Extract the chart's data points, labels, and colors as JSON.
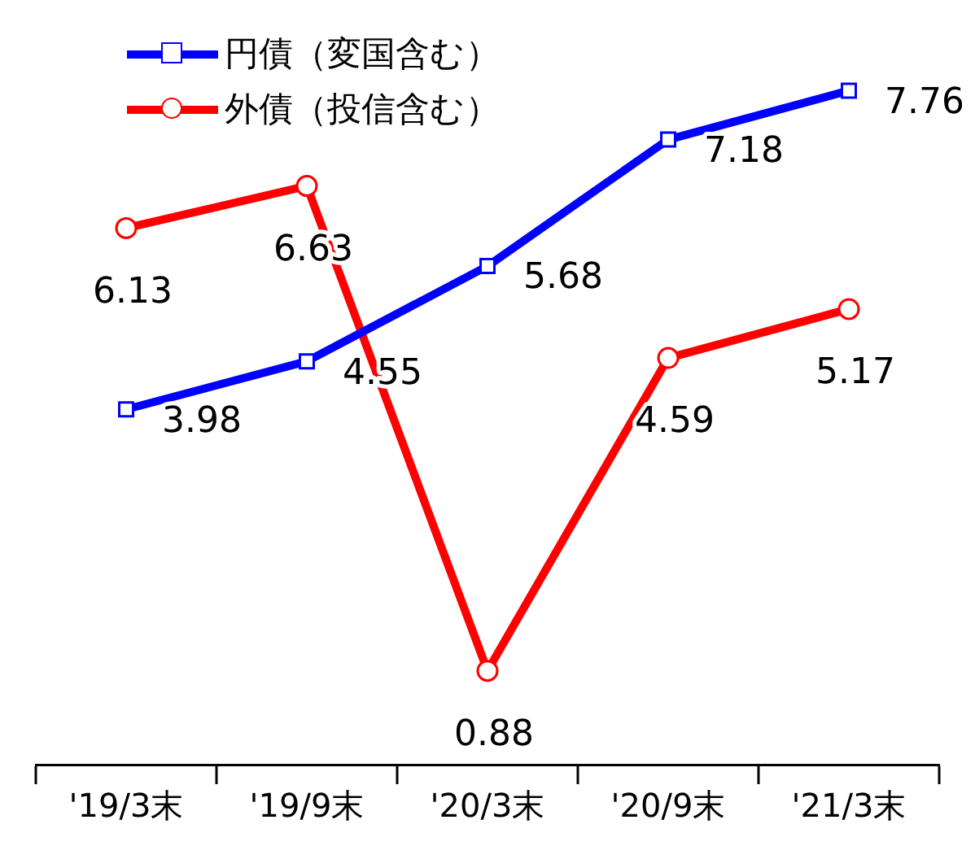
{
  "chart_data": {
    "type": "line",
    "categories": [
      "'19/3末",
      "'19/9末",
      "'20/3末",
      "'20/9末",
      "'21/3末"
    ],
    "series": [
      {
        "name": "円債（変国含む）",
        "color": "#0000ff",
        "marker": "square",
        "values": [
          3.98,
          4.55,
          5.68,
          7.18,
          7.76
        ]
      },
      {
        "name": "外債（投信含む）",
        "color": "#ff0000",
        "marker": "circle",
        "values": [
          6.13,
          6.63,
          0.88,
          4.59,
          5.17
        ]
      }
    ],
    "data_labels": true,
    "legend": "top left"
  }
}
